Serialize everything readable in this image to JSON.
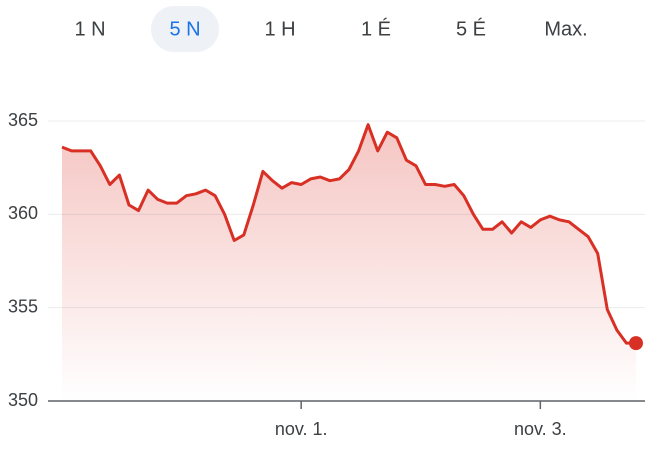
{
  "tabs": [
    "1 N",
    "5 N",
    "1 H",
    "1 É",
    "5 É",
    "Max."
  ],
  "selected_tab": "5 N",
  "chart_data": {
    "type": "line",
    "categories": [
      null,
      null,
      null,
      null,
      null,
      null,
      null,
      null,
      null,
      null,
      null,
      null,
      null,
      null,
      null,
      null,
      null,
      null,
      null,
      null,
      null,
      null,
      null,
      null,
      null,
      "nov. 1.",
      null,
      null,
      null,
      null,
      null,
      null,
      null,
      null,
      null,
      null,
      null,
      null,
      null,
      null,
      null,
      null,
      null,
      null,
      null,
      null,
      null,
      null,
      null,
      null,
      "nov. 3.",
      null,
      null,
      null,
      null,
      null,
      null,
      null,
      null,
      null,
      null
    ],
    "values": [
      363.6,
      363.4,
      363.4,
      363.4,
      362.6,
      361.6,
      362.1,
      360.5,
      360.2,
      361.3,
      360.8,
      360.6,
      360.6,
      361.0,
      361.1,
      361.3,
      361.0,
      360.0,
      358.6,
      358.9,
      360.5,
      362.3,
      361.8,
      361.4,
      361.7,
      361.6,
      361.9,
      362.0,
      361.8,
      361.9,
      362.4,
      363.4,
      364.8,
      363.4,
      364.4,
      364.1,
      362.9,
      362.6,
      361.6,
      361.6,
      361.5,
      361.6,
      361.0,
      360.0,
      359.2,
      359.2,
      359.6,
      359.0,
      359.6,
      359.3,
      359.7,
      359.9,
      359.7,
      359.6,
      359.2,
      358.8,
      357.9,
      354.9,
      353.8,
      353.1,
      353.1
    ],
    "color": "#d93025",
    "ylim": [
      350,
      365
    ],
    "yticks": [
      350,
      355,
      360,
      365
    ],
    "grid": true
  }
}
